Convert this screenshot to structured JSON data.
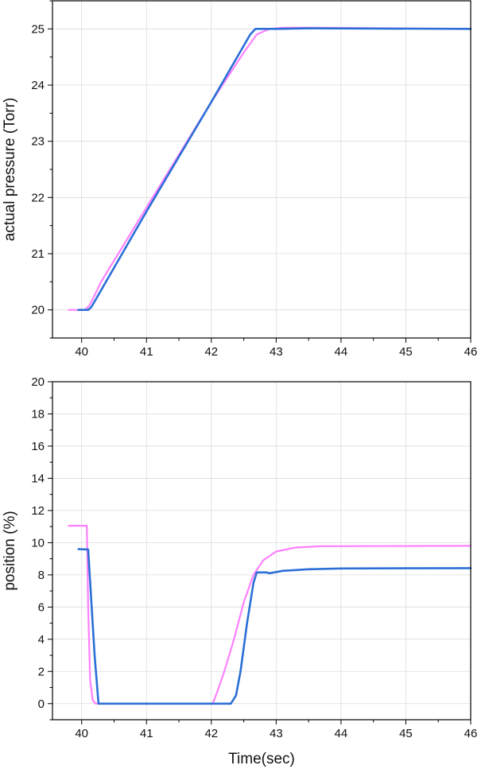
{
  "chart_data": [
    {
      "type": "line",
      "title": "",
      "xlabel": "",
      "ylabel": "actual pressure (Torr)",
      "xlim": [
        39.55,
        46
      ],
      "ylim": [
        19.5,
        25.5
      ],
      "x_ticks": [
        "40",
        "41",
        "42",
        "43",
        "44",
        "45",
        "46"
      ],
      "y_ticks": [
        "20",
        "21",
        "22",
        "23",
        "24",
        "25"
      ],
      "grid": true,
      "legend": "none",
      "series": [
        {
          "color": "#ff80ff",
          "points": [
            [
              39.8,
              20.0
            ],
            [
              39.95,
              20.0
            ],
            [
              40.05,
              20.0
            ],
            [
              40.12,
              20.08
            ],
            [
              40.2,
              20.26
            ],
            [
              40.3,
              20.5
            ],
            [
              41.0,
              21.82
            ],
            [
              42.0,
              23.7
            ],
            [
              42.5,
              24.58
            ],
            [
              42.7,
              24.9
            ],
            [
              42.9,
              25.0
            ],
            [
              43.1,
              25.02
            ],
            [
              43.5,
              25.02
            ],
            [
              46.0,
              25.0
            ]
          ]
        },
        {
          "color": "#2b6fd6",
          "points": [
            [
              39.95,
              20.0
            ],
            [
              40.1,
              20.0
            ],
            [
              40.15,
              20.05
            ],
            [
              40.25,
              20.25
            ],
            [
              40.35,
              20.45
            ],
            [
              41.0,
              21.75
            ],
            [
              42.0,
              23.7
            ],
            [
              42.6,
              24.9
            ],
            [
              42.68,
              25.0
            ],
            [
              43.0,
              25.0
            ],
            [
              43.5,
              25.01
            ],
            [
              46.0,
              25.0
            ]
          ]
        }
      ]
    },
    {
      "type": "line",
      "title": "",
      "xlabel": "Time(sec)",
      "ylabel": "position (%)",
      "xlim": [
        39.55,
        46
      ],
      "ylim": [
        -1,
        20
      ],
      "x_ticks": [
        "40",
        "41",
        "42",
        "43",
        "44",
        "45",
        "46"
      ],
      "y_ticks": [
        "0",
        "2",
        "4",
        "6",
        "8",
        "10",
        "12",
        "14",
        "16",
        "18",
        "20"
      ],
      "grid": true,
      "legend": "none",
      "series": [
        {
          "color": "#ff80ff",
          "points": [
            [
              39.8,
              11.05
            ],
            [
              40.08,
              11.05
            ],
            [
              40.1,
              6.0
            ],
            [
              40.13,
              1.5
            ],
            [
              40.17,
              0.2
            ],
            [
              40.22,
              0.0
            ],
            [
              42.02,
              0.0
            ],
            [
              42.08,
              0.6
            ],
            [
              42.2,
              2.0
            ],
            [
              42.35,
              4.0
            ],
            [
              42.5,
              6.3
            ],
            [
              42.65,
              8.0
            ],
            [
              42.8,
              8.9
            ],
            [
              43.0,
              9.45
            ],
            [
              43.3,
              9.7
            ],
            [
              43.7,
              9.78
            ],
            [
              46.0,
              9.8
            ]
          ]
        },
        {
          "color": "#2b6fd6",
          "points": [
            [
              39.95,
              9.6
            ],
            [
              40.1,
              9.58
            ],
            [
              40.2,
              3.0
            ],
            [
              40.26,
              0.0
            ],
            [
              42.3,
              0.0
            ],
            [
              42.38,
              0.5
            ],
            [
              42.45,
              2.0
            ],
            [
              42.55,
              5.0
            ],
            [
              42.65,
              7.5
            ],
            [
              42.7,
              8.15
            ],
            [
              42.85,
              8.15
            ],
            [
              42.9,
              8.1
            ],
            [
              43.1,
              8.25
            ],
            [
              43.5,
              8.35
            ],
            [
              44.0,
              8.4
            ],
            [
              46.0,
              8.42
            ]
          ]
        }
      ]
    }
  ]
}
